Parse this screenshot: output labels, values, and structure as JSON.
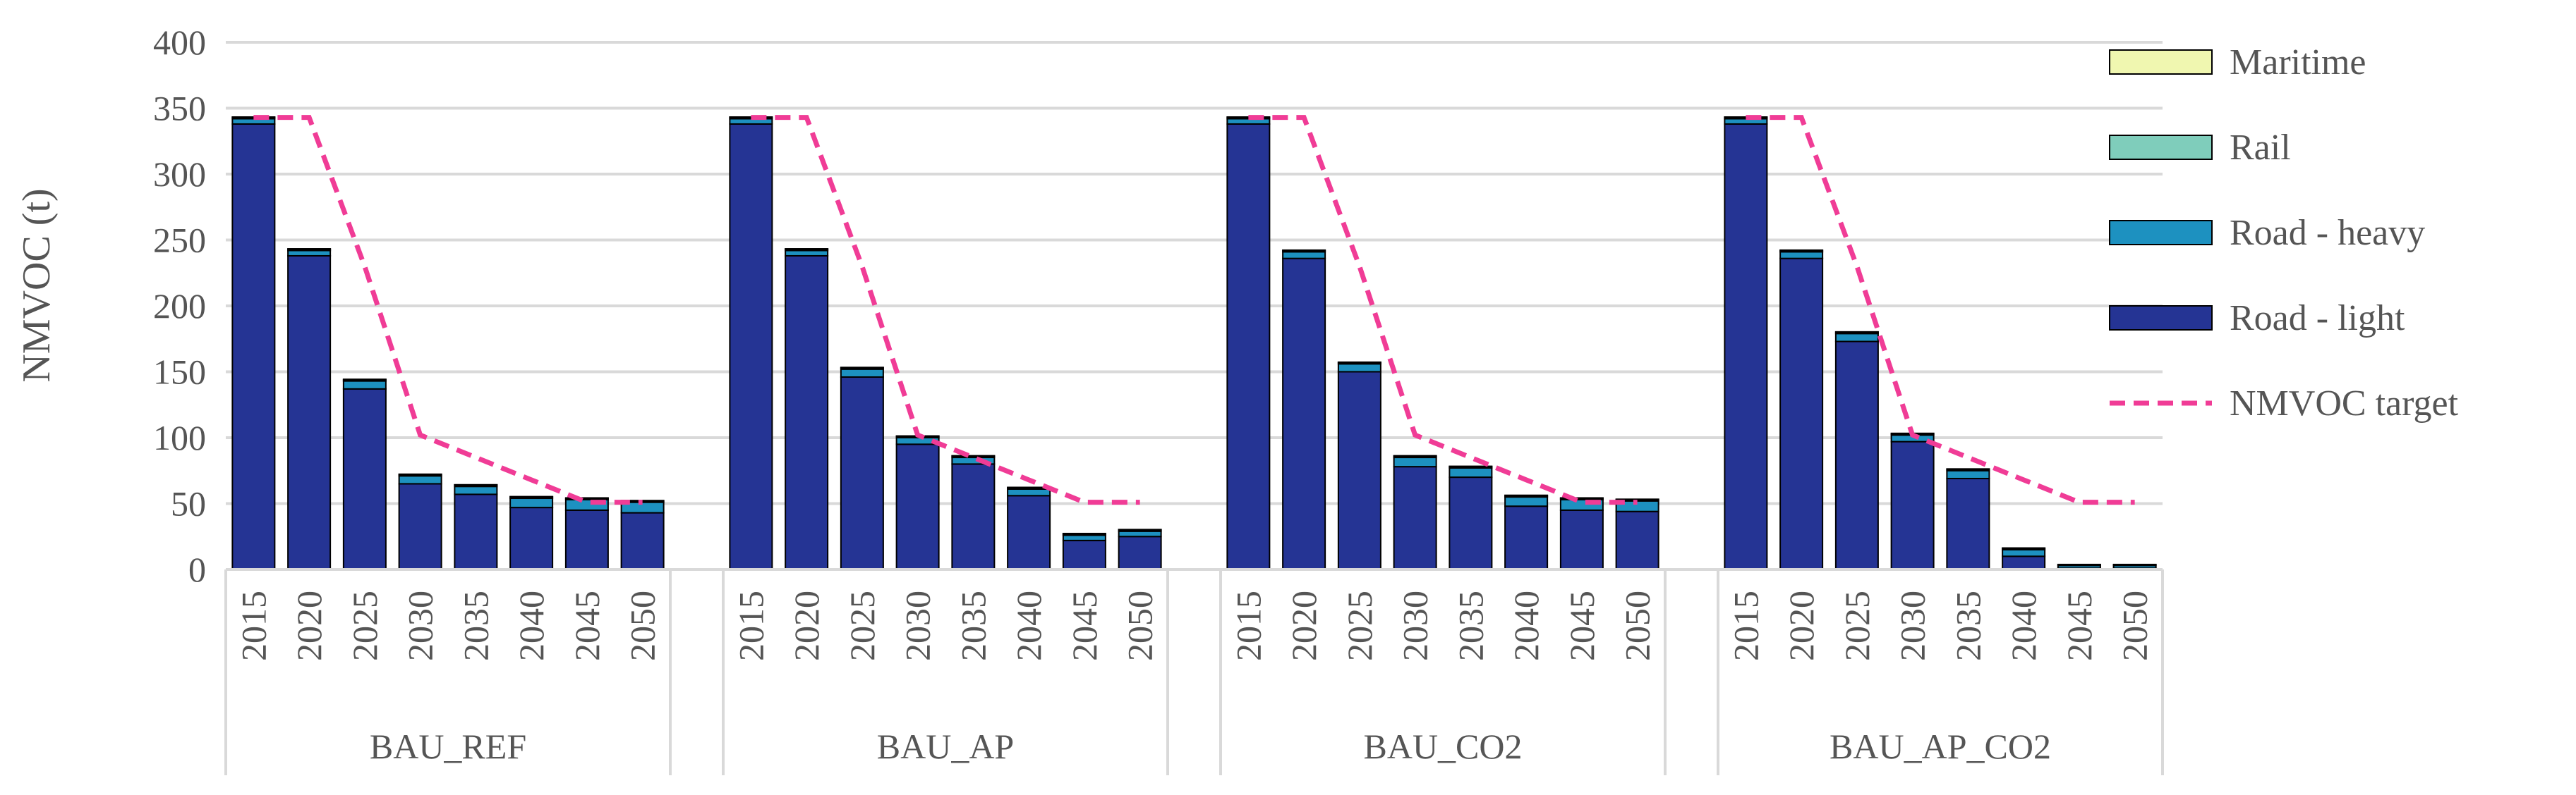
{
  "chart_data": {
    "type": "bar",
    "stacked": true,
    "title": "",
    "ylabel": "NMVOC (t)",
    "xlabel": "",
    "ylim": [
      0,
      400
    ],
    "yticks": [
      0,
      50,
      100,
      150,
      200,
      250,
      300,
      350,
      400
    ],
    "grid": true,
    "legend_position": "right",
    "categories": [
      "2015",
      "2020",
      "2025",
      "2030",
      "2035",
      "2040",
      "2045",
      "2050"
    ],
    "legend": [
      "Maritime",
      "Rail",
      "Road - heavy",
      "Road - light",
      "NMVOC target"
    ],
    "colors": {
      "Maritime": "#f0f7b0",
      "Rail": "#7fcdbb",
      "Road - heavy": "#1d91c0",
      "Road - light": "#253494",
      "NMVOC target": "#f03c96",
      "grid": "#d9d9d9",
      "bar_edge": "#000000"
    },
    "groups": [
      {
        "name": "BAU_REF",
        "series": [
          {
            "name": "Road - light",
            "values": [
              338,
              238,
              137,
              65,
              57,
              47,
              45,
              43
            ]
          },
          {
            "name": "Road - heavy",
            "values": [
              4,
              4,
              6,
              6,
              6,
              7,
              8,
              8
            ]
          },
          {
            "name": "Rail",
            "values": [
              1,
              1,
              1,
              1,
              1,
              1,
              1,
              1
            ]
          },
          {
            "name": "Maritime",
            "values": [
              0.3,
              0.3,
              0.3,
              0.3,
              0.3,
              0.3,
              0.3,
              0.3
            ]
          }
        ],
        "target": [
          343,
          343,
          230,
          102,
          85,
          68,
          51,
          51
        ]
      },
      {
        "name": "BAU_AP",
        "series": [
          {
            "name": "Road - light",
            "values": [
              338,
              238,
              146,
              95,
              80,
              56,
              22,
              25
            ]
          },
          {
            "name": "Road - heavy",
            "values": [
              4,
              4,
              6,
              5,
              5,
              5,
              4,
              4
            ]
          },
          {
            "name": "Rail",
            "values": [
              1,
              1,
              1,
              1,
              1,
              1,
              1,
              1
            ]
          },
          {
            "name": "Maritime",
            "values": [
              0.3,
              0.3,
              0.3,
              0.3,
              0.3,
              0.3,
              0.3,
              0.3
            ]
          }
        ],
        "target": [
          343,
          343,
          230,
          102,
          85,
          68,
          51,
          51
        ]
      },
      {
        "name": "BAU_CO2",
        "series": [
          {
            "name": "Road - light",
            "values": [
              338,
              236,
              150,
              78,
              70,
              48,
              45,
              44
            ]
          },
          {
            "name": "Road - heavy",
            "values": [
              4,
              5,
              6,
              7,
              7,
              7,
              8,
              8
            ]
          },
          {
            "name": "Rail",
            "values": [
              1,
              1,
              1,
              1,
              1,
              1,
              1,
              1
            ]
          },
          {
            "name": "Maritime",
            "values": [
              0.3,
              0.3,
              0.3,
              0.3,
              0.3,
              0.3,
              0.3,
              0.3
            ]
          }
        ],
        "target": [
          343,
          343,
          230,
          102,
          85,
          68,
          51,
          51
        ]
      },
      {
        "name": "BAU_AP_CO2",
        "series": [
          {
            "name": "Road - light",
            "values": [
              338,
              236,
              173,
              97,
              69,
              10,
              1,
              1
            ]
          },
          {
            "name": "Road - heavy",
            "values": [
              4,
              5,
              6,
              5,
              6,
              5,
              2,
              2
            ]
          },
          {
            "name": "Rail",
            "values": [
              1,
              1,
              1,
              1,
              1,
              1,
              0.5,
              0.5
            ]
          },
          {
            "name": "Maritime",
            "values": [
              0.3,
              0.3,
              0.3,
              0.3,
              0.3,
              0.3,
              0.3,
              0.3
            ]
          }
        ],
        "target": [
          343,
          343,
          230,
          102,
          85,
          68,
          51,
          51
        ]
      }
    ]
  }
}
